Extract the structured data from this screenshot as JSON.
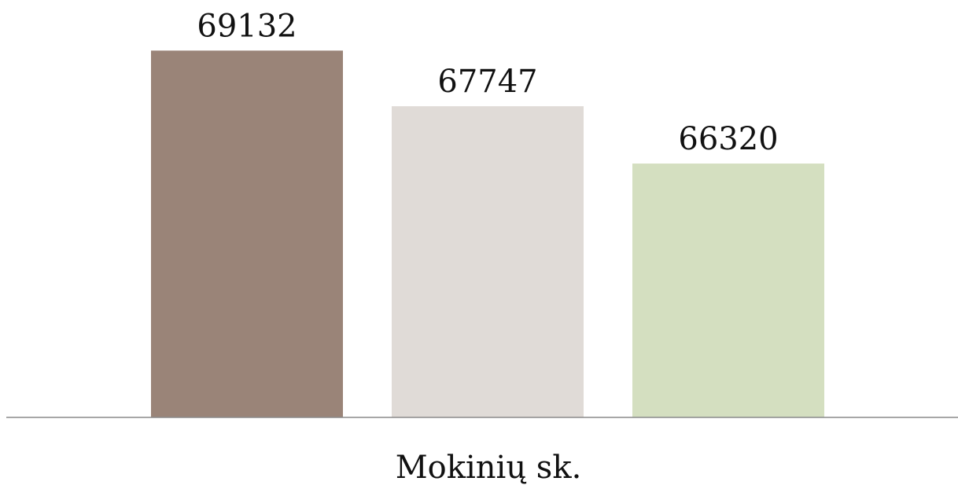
{
  "chart_data": {
    "type": "bar",
    "categories": [
      "Mokinių sk."
    ],
    "series": [
      {
        "values": [
          69132
        ],
        "color": "#9a8478"
      },
      {
        "values": [
          67747
        ],
        "color": "#e0dbd7"
      },
      {
        "values": [
          66320
        ],
        "color": "#d4dfc0"
      }
    ],
    "data_labels": [
      "69132",
      "67747",
      "66320"
    ],
    "title": "",
    "xlabel": "",
    "ylabel": "",
    "ylim": [
      60000,
      70000
    ],
    "grid": false,
    "legend": "none"
  }
}
